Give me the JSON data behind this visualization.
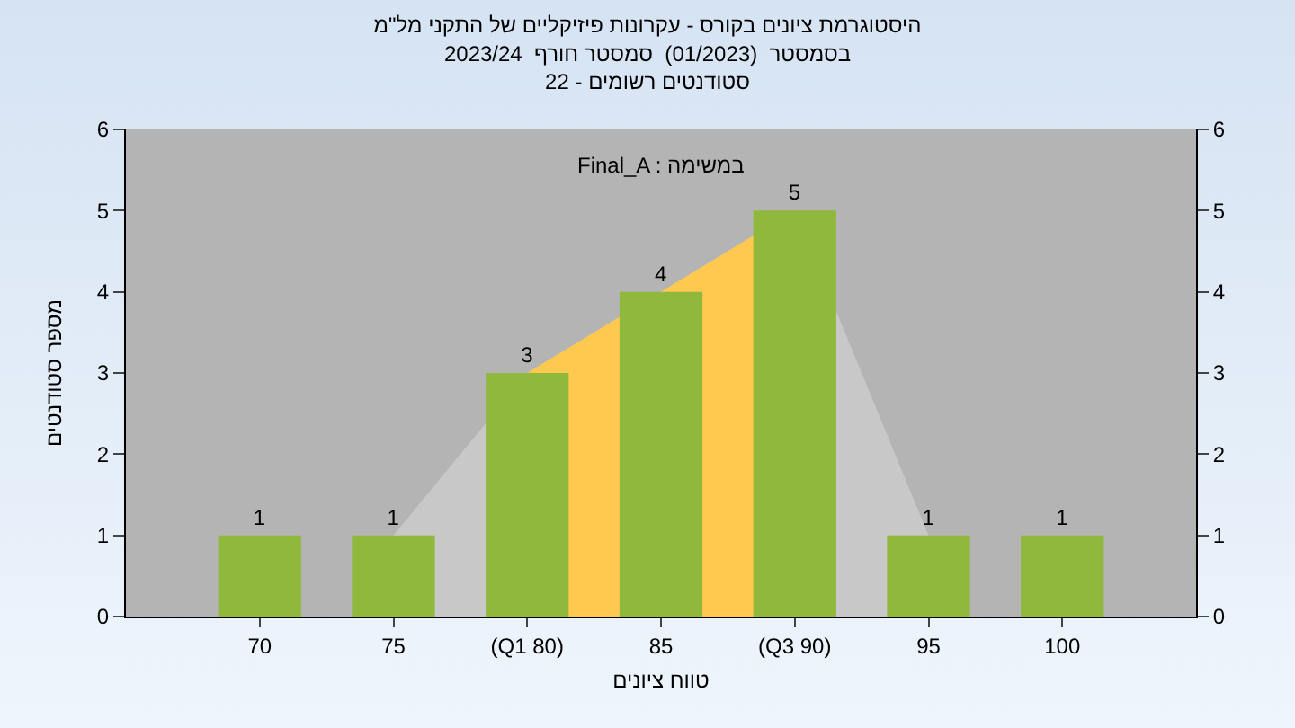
{
  "chart_data": {
    "type": "bar",
    "title": "היסטוגרמת ציונים בקורס - עקרונות פיזיקליים של התקני מל\"מ\nבסמסטר  (01/2023)  סמסטר חורף  2023/24\nסטודנטים רשומים - 22",
    "xlabel": "טווח ציונים",
    "ylabel": "מספר סטודנטים",
    "categories": [
      "70",
      "75",
      "(Q1 80)",
      "85",
      "(Q3 90)",
      "95",
      "100"
    ],
    "series": [
      {
        "type": "area",
        "color": "#c8c8c8",
        "values": [
          null,
          1,
          3,
          4,
          5,
          1,
          null
        ]
      },
      {
        "type": "area",
        "color": "#ffc84e",
        "values": [
          null,
          null,
          3,
          4,
          5,
          null,
          null
        ]
      },
      {
        "color": "#8fb83c",
        "values": [
          1,
          1,
          3,
          4,
          5,
          1,
          1
        ],
        "value_labels": [
          "1",
          "1",
          "3",
          "4",
          "5",
          "1",
          "1"
        ]
      }
    ],
    "ylim": [
      0,
      6
    ],
    "yticks": [
      0,
      1,
      2,
      3,
      4,
      5,
      6
    ],
    "y2lim": [
      0,
      6
    ],
    "y2ticks": [
      0,
      1,
      2,
      3,
      4,
      5,
      6
    ],
    "annotations": [
      "Final_A : במשימה"
    ]
  }
}
